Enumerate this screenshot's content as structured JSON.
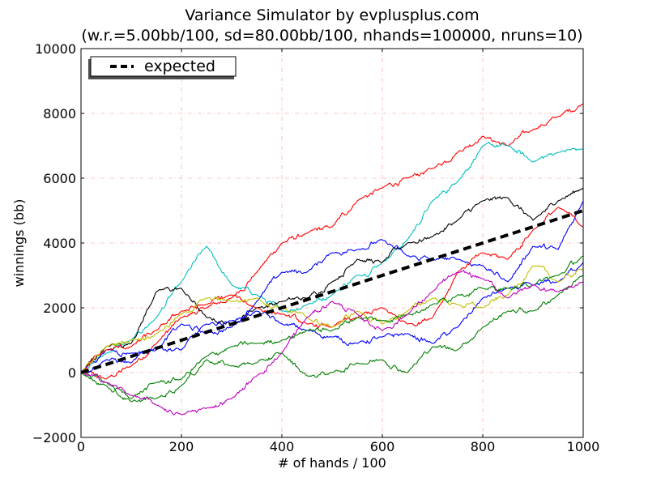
{
  "chart_data": {
    "type": "line",
    "title": "Variance Simulator by evplusplus.com",
    "subtitle": "(w.r.=5.00bb/100, sd=80.00bb/100, nhands=100000, nruns=10)",
    "xlabel": "# of hands / 100",
    "ylabel": "winnings (bb)",
    "xlim": [
      0,
      1000
    ],
    "ylim": [
      -2000,
      10000
    ],
    "xticks": [
      0,
      200,
      400,
      600,
      800,
      1000
    ],
    "yticks": [
      -2000,
      0,
      2000,
      4000,
      6000,
      8000,
      10000
    ],
    "xtick_labels": [
      "0",
      "200",
      "400",
      "600",
      "800",
      "1000"
    ],
    "ytick_labels": [
      "−2000",
      "0",
      "2000",
      "4000",
      "6000",
      "8000",
      "10000"
    ],
    "grid": true,
    "legend": {
      "location": "upper-left",
      "entries": [
        "expected"
      ]
    },
    "expected": {
      "name": "expected",
      "color": "#000000",
      "style": "dashed",
      "x": [
        0,
        1000
      ],
      "values": [
        0,
        5000
      ]
    },
    "runs": [
      {
        "color": "#ff0000",
        "x": [
          0,
          50,
          100,
          150,
          200,
          250,
          300,
          350,
          400,
          450,
          500,
          550,
          600,
          650,
          700,
          750,
          800,
          850,
          900,
          950,
          1000
        ],
        "values": [
          0,
          -200,
          200,
          900,
          1700,
          2000,
          2300,
          3100,
          4000,
          4300,
          4500,
          5300,
          5700,
          6000,
          6300,
          6800,
          7300,
          7000,
          7500,
          7900,
          8300
        ]
      },
      {
        "color": "#00bfbf",
        "x": [
          0,
          50,
          100,
          150,
          200,
          250,
          300,
          350,
          400,
          450,
          500,
          550,
          600,
          650,
          700,
          750,
          800,
          850,
          900,
          950,
          1000
        ],
        "values": [
          0,
          600,
          1000,
          1700,
          2800,
          3900,
          2700,
          2400,
          1900,
          2100,
          2400,
          3000,
          3400,
          4100,
          5300,
          5900,
          7000,
          7000,
          6500,
          6800,
          6900
        ]
      },
      {
        "color": "#000000",
        "x": [
          0,
          50,
          100,
          150,
          200,
          250,
          300,
          350,
          400,
          450,
          500,
          550,
          600,
          650,
          700,
          750,
          800,
          850,
          900,
          950,
          1000
        ],
        "values": [
          0,
          800,
          900,
          2500,
          2600,
          1700,
          1500,
          2000,
          2200,
          2300,
          2800,
          3500,
          3400,
          4000,
          4200,
          4700,
          5300,
          5400,
          4700,
          5300,
          5700
        ]
      },
      {
        "color": "#0000ff",
        "x": [
          0,
          50,
          100,
          150,
          200,
          250,
          300,
          350,
          400,
          450,
          500,
          550,
          600,
          650,
          700,
          750,
          800,
          850,
          900,
          950,
          1000
        ],
        "values": [
          0,
          700,
          600,
          700,
          1500,
          1200,
          1400,
          2200,
          3100,
          3100,
          3700,
          3800,
          4100,
          3600,
          3500,
          3500,
          3300,
          2800,
          3900,
          3800,
          5300
        ]
      },
      {
        "color": "#0000ff",
        "x": [
          0,
          50,
          100,
          150,
          200,
          250,
          300,
          350,
          400,
          450,
          500,
          550,
          600,
          650,
          700,
          750,
          800,
          850,
          900,
          950,
          1000
        ],
        "values": [
          0,
          400,
          300,
          800,
          700,
          1500,
          1600,
          1900,
          1500,
          1300,
          1100,
          900,
          1100,
          1200,
          900,
          1400,
          2300,
          2600,
          2700,
          2800,
          3400
        ]
      },
      {
        "color": "#ff0000",
        "x": [
          0,
          50,
          100,
          150,
          200,
          250,
          300,
          350,
          400,
          450,
          500,
          550,
          600,
          650,
          700,
          750,
          800,
          850,
          900,
          950,
          1000
        ],
        "values": [
          0,
          700,
          800,
          1300,
          1900,
          2100,
          2400,
          2000,
          1800,
          1500,
          1400,
          1700,
          2000,
          1500,
          1700,
          3100,
          3700,
          3500,
          4400,
          5100,
          4500
        ]
      },
      {
        "color": "#bfbf00",
        "x": [
          0,
          50,
          100,
          150,
          200,
          250,
          300,
          350,
          400,
          450,
          500,
          550,
          600,
          650,
          700,
          750,
          800,
          850,
          900,
          950,
          1000
        ],
        "values": [
          0,
          800,
          1000,
          1200,
          1800,
          2300,
          2200,
          2300,
          2000,
          1700,
          1400,
          1900,
          1500,
          1900,
          2300,
          2100,
          2000,
          2400,
          3300,
          2800,
          3200
        ]
      },
      {
        "color": "#008000",
        "x": [
          0,
          50,
          100,
          150,
          200,
          250,
          300,
          350,
          400,
          450,
          500,
          550,
          600,
          650,
          700,
          750,
          800,
          850,
          900,
          950,
          1000
        ],
        "values": [
          0,
          -300,
          -800,
          -300,
          -200,
          500,
          800,
          900,
          1000,
          1300,
          1300,
          1700,
          1600,
          1800,
          2100,
          2400,
          2600,
          2600,
          2700,
          3000,
          3600
        ]
      },
      {
        "color": "#008000",
        "x": [
          0,
          50,
          100,
          150,
          200,
          250,
          300,
          350,
          400,
          450,
          500,
          550,
          600,
          650,
          700,
          750,
          800,
          850,
          900,
          950,
          1000
        ],
        "values": [
          0,
          -400,
          -900,
          -800,
          -400,
          400,
          200,
          300,
          600,
          -100,
          0,
          300,
          400,
          0,
          800,
          700,
          1400,
          1900,
          1900,
          2400,
          3000
        ]
      },
      {
        "color": "#bf00bf",
        "x": [
          0,
          50,
          100,
          150,
          200,
          250,
          300,
          350,
          400,
          450,
          500,
          550,
          600,
          650,
          700,
          750,
          800,
          850,
          900,
          950,
          1000
        ],
        "values": [
          0,
          -300,
          -700,
          -1000,
          -1300,
          -1100,
          -800,
          -100,
          600,
          1700,
          2200,
          1800,
          1300,
          1800,
          2500,
          3100,
          2900,
          2300,
          2700,
          2500,
          2800
        ]
      }
    ]
  }
}
